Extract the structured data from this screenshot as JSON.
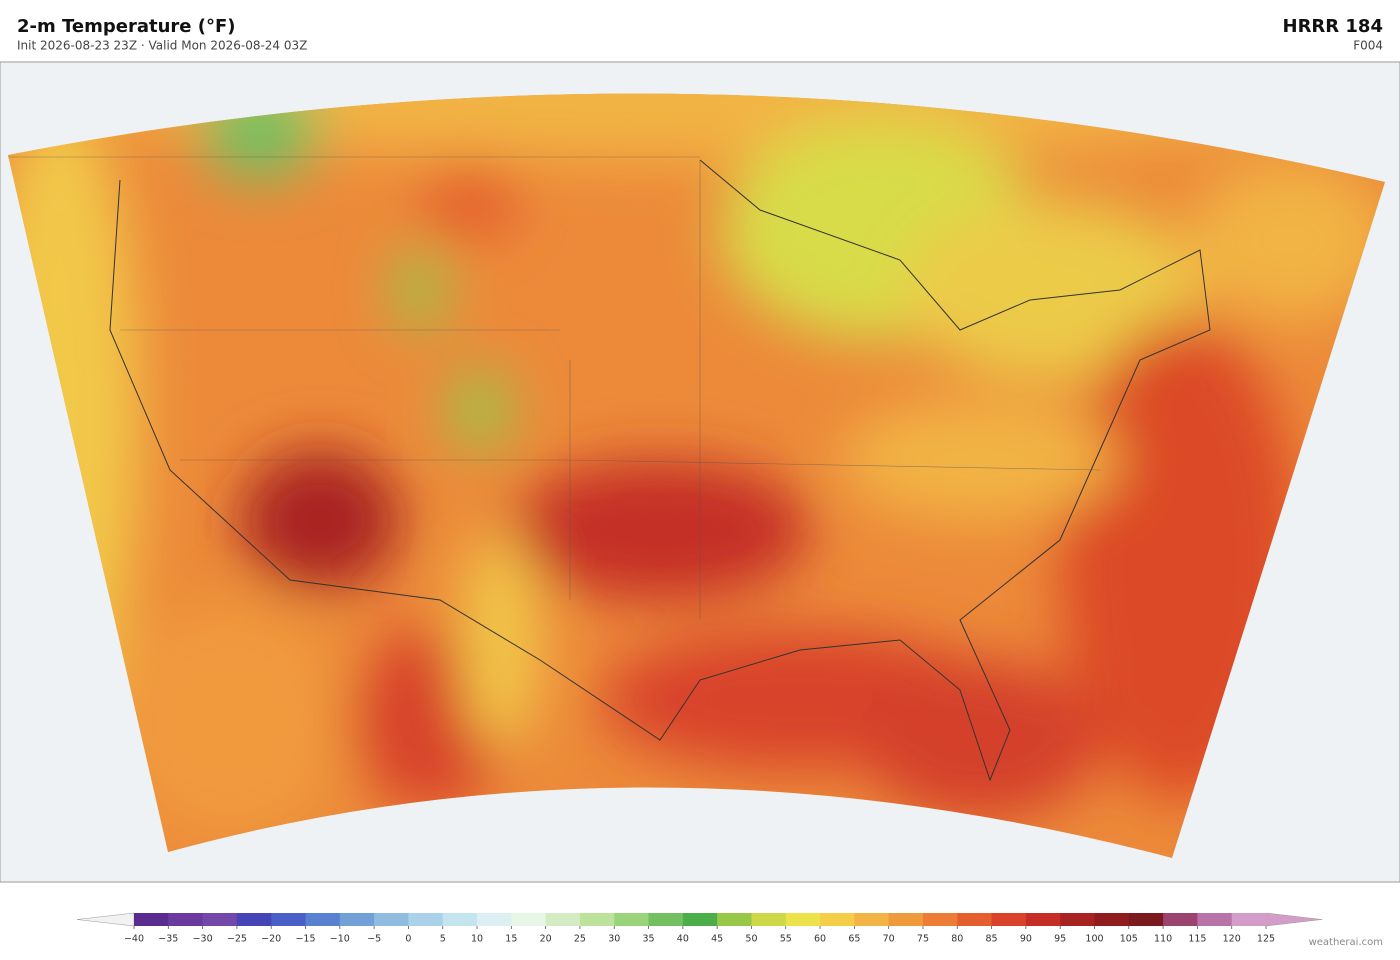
{
  "header": {
    "title": "2-m Temperature  (°F)",
    "subtitle": "Init 2026-08-23 23Z  ·  Valid Mon 2026-08-24 03Z",
    "model": "HRRR  184",
    "forecast": "F004"
  },
  "colorbar": {
    "under": "#f2f2f2",
    "over": "#d49cc8",
    "colors": [
      "#5b2c8f",
      "#6a3a9e",
      "#7448a8",
      "#4545b8",
      "#4a5fc8",
      "#5a80d0",
      "#74a0d8",
      "#90bce0",
      "#aad2e8",
      "#c4e4f0",
      "#dcf0f4",
      "#e8f6e8",
      "#d4ecc4",
      "#bce29c",
      "#9ad47a",
      "#74c060",
      "#4cae48",
      "#98c848",
      "#ccd848",
      "#ece24c",
      "#f4ce48",
      "#f2b444",
      "#f09a3e",
      "#ec7c36",
      "#e45e2e",
      "#d8432a",
      "#c42e26",
      "#a82222",
      "#901c20",
      "#7a1a1e",
      "#9c4470",
      "#b874a8",
      "#d49cc8"
    ],
    "ticks": [
      {
        "value": -40,
        "label": "−40"
      },
      {
        "value": -35,
        "label": "−35"
      },
      {
        "value": -30,
        "label": "−30"
      },
      {
        "value": -25,
        "label": "−25"
      },
      {
        "value": -20,
        "label": "−20"
      },
      {
        "value": -15,
        "label": "−15"
      },
      {
        "value": -10,
        "label": "−10"
      },
      {
        "value": -5,
        "label": "−5"
      },
      0,
      5,
      10,
      15,
      20,
      25,
      30,
      35,
      40,
      45,
      50,
      55,
      60,
      65,
      70,
      75,
      80,
      85,
      90,
      95,
      100,
      105,
      110,
      115,
      120,
      125
    ]
  },
  "credit": "weatherai.com"
}
